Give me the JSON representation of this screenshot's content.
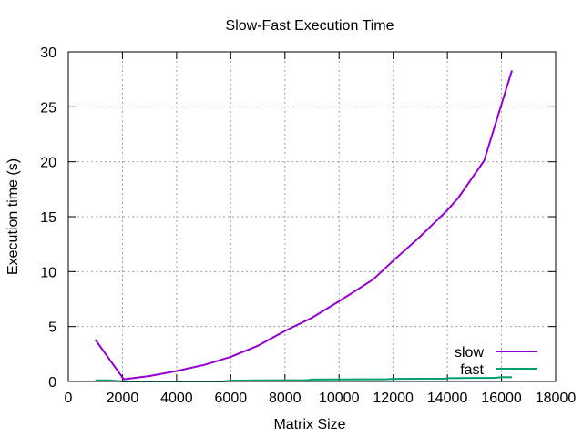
{
  "chart_data": {
    "type": "line",
    "title": "Slow-Fast Execution Time",
    "xlabel": "Matrix Size",
    "ylabel": "Execution time (s)",
    "xlim": [
      0,
      18000
    ],
    "ylim": [
      0,
      30
    ],
    "xticks": [
      0,
      2000,
      4000,
      6000,
      8000,
      10000,
      12000,
      14000,
      16000,
      18000
    ],
    "yticks": [
      0,
      5,
      10,
      15,
      20,
      25,
      30
    ],
    "grid": true,
    "legend_position": "bottom-right",
    "colors": {
      "slow": "#9400d3",
      "fast": "#009e73"
    },
    "series": [
      {
        "name": "slow",
        "x": [
          1000,
          2048,
          3000,
          4000,
          5000,
          6000,
          7000,
          8000,
          9000,
          10000,
          11264,
          12000,
          13000,
          14000,
          14400,
          15360,
          16384
        ],
        "y": [
          3.8,
          0.2,
          0.5,
          0.95,
          1.5,
          2.25,
          3.25,
          4.6,
          5.8,
          7.3,
          9.3,
          11.0,
          13.2,
          15.6,
          16.7,
          20.1,
          28.3
        ]
      },
      {
        "name": "fast",
        "x": [
          1000,
          1500,
          2048,
          3000,
          4000,
          5000,
          5700,
          6000,
          7000,
          8000,
          8800,
          9000,
          10000,
          11000,
          11700,
          12000,
          13000,
          13900,
          14000,
          15000,
          15700,
          16000,
          16384
        ],
        "y": [
          0.1,
          0.1,
          0.0,
          0.0,
          0.0,
          0.0,
          0.0,
          0.08,
          0.1,
          0.12,
          0.12,
          0.17,
          0.18,
          0.2,
          0.2,
          0.24,
          0.25,
          0.25,
          0.3,
          0.32,
          0.32,
          0.38,
          0.4
        ]
      }
    ]
  }
}
